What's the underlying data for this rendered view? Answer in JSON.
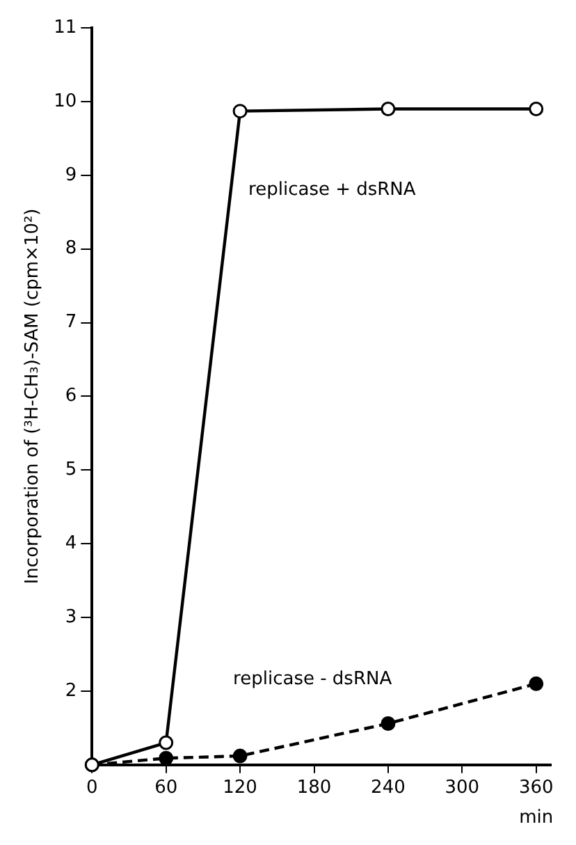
{
  "chart_data": {
    "type": "line",
    "xlabel": "min",
    "ylabel": "Incorporation of (³H-CH₃)-SAM (cpm×10²)",
    "xlim": [
      0,
      372
    ],
    "xticks": [
      0,
      60,
      120,
      180,
      240,
      300,
      360
    ],
    "ylim": [
      1,
      11
    ],
    "yticks": [
      2,
      3,
      4,
      5,
      6,
      7,
      8,
      9,
      10,
      11
    ],
    "grid": false,
    "legend": false,
    "marker": "circle",
    "series": [
      {
        "name": "replicase + dsRNA",
        "color": "#000000",
        "line_style": "solid",
        "x": [
          0,
          60,
          120,
          240,
          360
        ],
        "values": [
          1,
          1.3,
          9.87,
          9.9,
          9.9
        ]
      },
      {
        "name": "replicase - dsRNA",
        "color": "#000000",
        "line_style": "dashed",
        "x": [
          0,
          60,
          120,
          240,
          360
        ],
        "values": [
          1,
          1.09,
          1.12,
          1.56,
          2.1
        ]
      }
    ]
  }
}
